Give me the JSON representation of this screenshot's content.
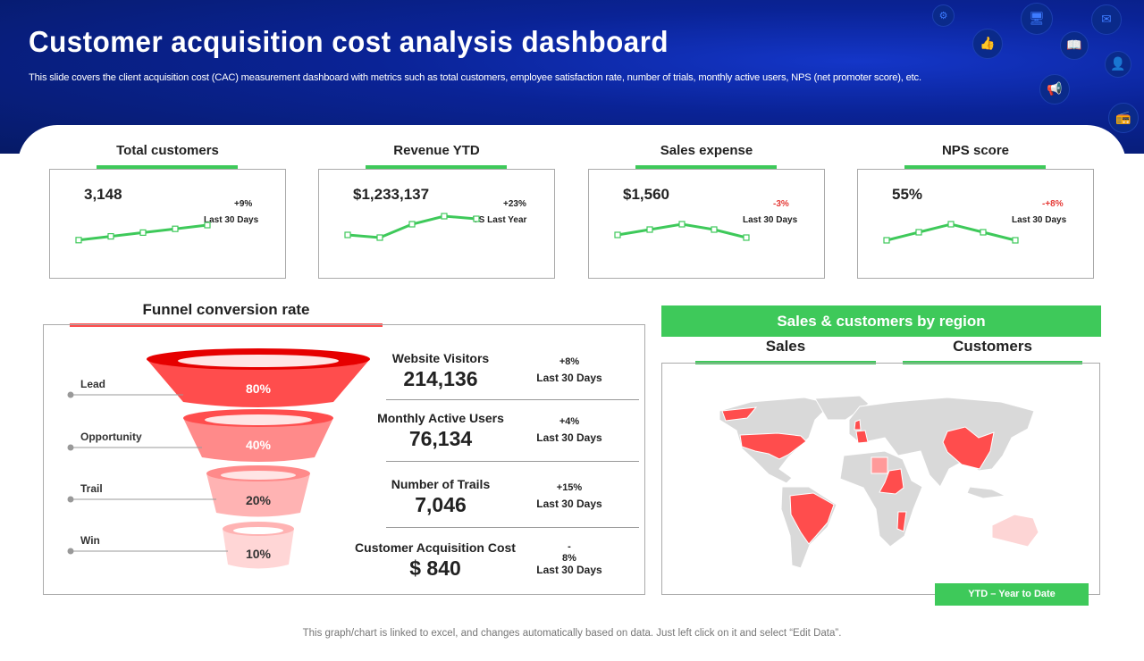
{
  "header": {
    "title": "Customer acquisition cost analysis dashboard",
    "subtitle": "This slide covers the client acquisition cost (CAC) measurement dashboard with metrics such as total customers, employee satisfaction rate, number of trials, monthly active users, NPS (net promoter score), etc.",
    "icons": [
      "settings-icon",
      "thumbs-up-icon",
      "monitor-icon",
      "book-icon",
      "mail-icon",
      "user-icon",
      "megaphone-icon",
      "radio-icon"
    ]
  },
  "kpis": [
    {
      "title": "Total customers",
      "value": "3,148",
      "change": "+9%",
      "period": "Last 30 Days",
      "negative": false,
      "trend": [
        1,
        2,
        3,
        4,
        5
      ]
    },
    {
      "title": "Revenue YTD",
      "value": "$1,233,137",
      "change": "+23%",
      "period": "VS Last Year",
      "negative": false,
      "trend": [
        2,
        1.5,
        4,
        5.5,
        5
      ]
    },
    {
      "title": "Sales expense",
      "value": "$1,560",
      "change": "-3%",
      "period": "Last 30 Days",
      "negative": true,
      "trend": [
        2,
        3,
        4,
        3,
        1.5
      ]
    },
    {
      "title": "NPS score",
      "value": "55%",
      "change": "-+8%",
      "period": "Last 30 Days",
      "negative": true,
      "trend": [
        1,
        2.5,
        4,
        2.5,
        1
      ]
    }
  ],
  "funnel": {
    "title": "Funnel conversion rate",
    "stages": [
      {
        "label": "Lead",
        "percent": "80%"
      },
      {
        "label": "Opportunity",
        "percent": "40%"
      },
      {
        "label": "Trail",
        "percent": "20%"
      },
      {
        "label": "Win",
        "percent": "10%"
      }
    ],
    "metrics": [
      {
        "label": "Website Visitors",
        "value": "214,136",
        "change": "+8%",
        "period": "Last 30 Days"
      },
      {
        "label": "Monthly Active Users",
        "value": "76,134",
        "change": "+4%",
        "period": "Last 30 Days"
      },
      {
        "label": "Number of Trails",
        "value": "7,046",
        "change": "+15%",
        "period": "Last 30 Days"
      },
      {
        "label": "Customer Acquisition Cost",
        "value": "$ 840",
        "change": "-\n8%",
        "period": "Last 30 Days"
      }
    ]
  },
  "region": {
    "title": "Sales & customers by region",
    "tabs": [
      "Sales",
      "Customers"
    ],
    "button": "YTD – Year to Date",
    "highlighted": [
      "USA",
      "Alaska",
      "Brazil",
      "China",
      "France",
      "UK",
      "Sudan",
      "Libya",
      "Mozambique",
      "Australia"
    ]
  },
  "colors": {
    "green": "#3ec95a",
    "red": "#ff4d4d",
    "blue": "#0a2396"
  },
  "footer": "This graph/chart is linked to excel,  and changes automatically based on data. Just left click on it and select “Edit Data”."
}
